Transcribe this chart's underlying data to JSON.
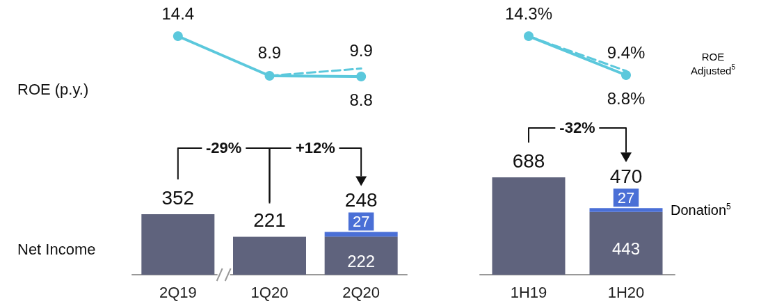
{
  "chart_data": [
    {
      "type": "line",
      "ylabel": "ROE (p.y.)",
      "categories": [
        null,
        null,
        null
      ],
      "series": [
        {
          "color": "#5bc8dc",
          "marker": "circle",
          "line_style": "solid",
          "values": [
            14.4,
            8.9,
            8.8
          ],
          "value_labels": [
            "14.4",
            "8.9",
            "8.8"
          ]
        },
        {
          "color": "#5bc8dc",
          "marker": "none",
          "line_style": "dashed",
          "values": [
            null,
            8.9,
            9.9
          ],
          "value_labels": [
            null,
            null,
            "9.9"
          ]
        }
      ]
    },
    {
      "type": "bar",
      "ylabel": "Net Income",
      "categories": [
        "2Q19",
        "1Q20",
        "2Q20"
      ],
      "stacked": true,
      "data_labels": true,
      "totals": [
        null,
        null,
        "248"
      ],
      "series": [
        {
          "color": "#5f637d",
          "values": [
            352,
            221,
            222
          ]
        },
        {
          "color": "#4a6fd6",
          "values": [
            null,
            null,
            27
          ]
        }
      ],
      "annotations": [
        "-29%",
        "+12%"
      ]
    },
    {
      "type": "line",
      "categories": [
        null,
        null
      ],
      "series": [
        {
          "color": "#5bc8dc",
          "marker": "circle",
          "line_style": "solid",
          "values": [
            14.3,
            8.8
          ],
          "value_labels": [
            "14.3%",
            "8.8%"
          ]
        },
        {
          "name": "ROE Adjusted$^{5}$",
          "color": "#5bc8dc",
          "marker": "none",
          "line_style": "dashed",
          "values": [
            14.3,
            9.4
          ],
          "value_labels": [
            null,
            "9.4%"
          ]
        }
      ]
    },
    {
      "type": "bar",
      "categories": [
        "1H19",
        "1H20"
      ],
      "stacked": true,
      "data_labels": true,
      "totals": [
        null,
        "470"
      ],
      "series": [
        {
          "color": "#5f637d",
          "values": [
            688,
            443
          ]
        },
        {
          "name": "Donation$^{5}$",
          "color": "#4a6fd6",
          "values": [
            null,
            27
          ]
        }
      ],
      "annotations": [
        "-32%"
      ]
    }
  ]
}
